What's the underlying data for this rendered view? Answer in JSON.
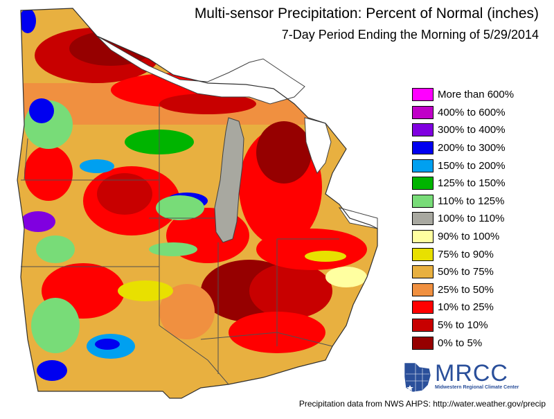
{
  "title": "Multi-sensor Precipitation: Percent of Normal (inches)",
  "subtitle": "7-Day Period Ending the Morning of 5/29/2014",
  "legend": [
    {
      "label": "More than 600%",
      "color": "#ff00ff"
    },
    {
      "label": "400% to 600%",
      "color": "#c000c8"
    },
    {
      "label": "300% to 400%",
      "color": "#8000e0"
    },
    {
      "label": "200% to 300%",
      "color": "#0000f0"
    },
    {
      "label": "150% to 200%",
      "color": "#00a0f0"
    },
    {
      "label": "125% to 150%",
      "color": "#00b400"
    },
    {
      "label": "110% to 125%",
      "color": "#78dc78"
    },
    {
      "label": "100% to 110%",
      "color": "#a8a8a0"
    },
    {
      "label": "90% to 100%",
      "color": "#ffffa0"
    },
    {
      "label": "75% to 90%",
      "color": "#e8e000"
    },
    {
      "label": "50% to 75%",
      "color": "#e8b040"
    },
    {
      "label": "25% to 50%",
      "color": "#f09040"
    },
    {
      "label": "10% to 25%",
      "color": "#ff0000"
    },
    {
      "label": "5% to 10%",
      "color": "#c80000"
    },
    {
      "label": "0% to 5%",
      "color": "#960000"
    }
  ],
  "logo": {
    "text": "MRCC",
    "subtext": "Midwestern Regional Climate Center"
  },
  "footer": "Precipitation data from NWS AHPS:  http://water.weather.gov/precip",
  "colors": {
    "lake": "#a8a8a0",
    "boundary": "#404040",
    "background": "#ffffff"
  }
}
